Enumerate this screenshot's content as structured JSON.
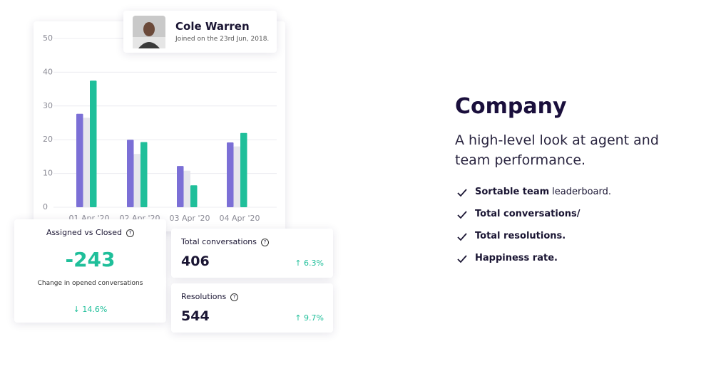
{
  "chart_data": {
    "type": "bar",
    "categories": [
      "01 Apr '20",
      "02 Apr '20",
      "03 Apr '20",
      "04 Apr '20"
    ],
    "series": [
      {
        "color": "#7b6fd6",
        "values": [
          27.7,
          20,
          12.2,
          19.2
        ]
      },
      {
        "color": "#e6e6ec",
        "values": [
          26.5,
          15.8,
          10.8,
          18
        ]
      },
      {
        "color": "#1fbf9a",
        "values": [
          37.5,
          19.3,
          6.5,
          22
        ]
      }
    ],
    "ylim": [
      0,
      50
    ],
    "yticks": [
      0,
      10,
      20,
      30,
      40,
      50
    ],
    "grid": true
  },
  "profile": {
    "name": "Cole Warren",
    "joined": "Joined on the 23rd Jun, 2018."
  },
  "stats": {
    "assigned": {
      "title": "Assigned vs Closed",
      "value": "-243",
      "caption": "Change in opened conversations",
      "change": "↓ 14.6%"
    },
    "conversations": {
      "title": "Total conversations",
      "value": "406",
      "change": "↑ 6.3%"
    },
    "resolutions": {
      "title": "Resolutions",
      "value": "544",
      "change": "↑ 9.7%"
    }
  },
  "feature": {
    "title": "Company",
    "subtitle": "A high-level look at agent and team performance.",
    "items": [
      {
        "bold": "Sortable team",
        "text": "leaderboard."
      },
      {
        "bold": "Total conversations/"
      },
      {
        "bold": "Total resolutions."
      },
      {
        "bold": "Happiness rate."
      }
    ]
  }
}
